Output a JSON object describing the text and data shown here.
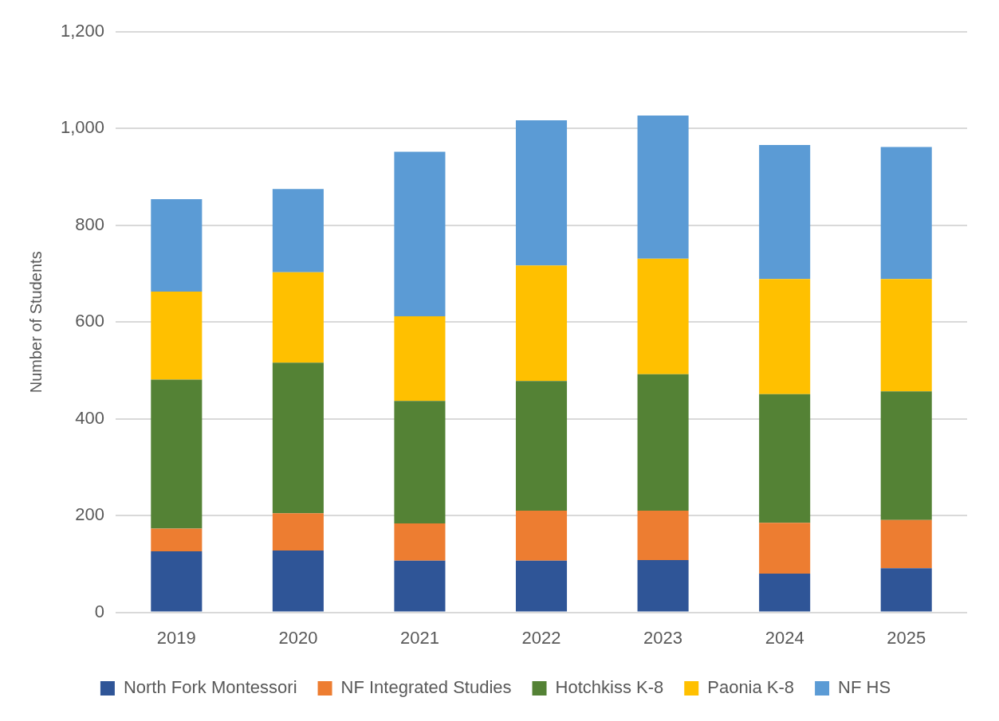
{
  "chart_data": {
    "type": "bar",
    "stacked": true,
    "ylabel": "Number of Students",
    "categories": [
      "2019",
      "2020",
      "2021",
      "2022",
      "2023",
      "2024",
      "2025"
    ],
    "series": [
      {
        "name": "North Fork Montessori",
        "color": "#2f5597",
        "values": [
          126,
          128,
          107,
          107,
          108,
          80,
          91
        ]
      },
      {
        "name": "NF Integrated Studies",
        "color": "#ed7d31",
        "values": [
          47,
          77,
          77,
          103,
          102,
          105,
          100
        ]
      },
      {
        "name": "Hotchkiss K-8",
        "color": "#548235",
        "values": [
          308,
          311,
          253,
          268,
          282,
          266,
          266
        ]
      },
      {
        "name": "Paonia K-8",
        "color": "#ffc000",
        "values": [
          182,
          187,
          175,
          239,
          239,
          238,
          232
        ]
      },
      {
        "name": "NF HS",
        "color": "#5b9bd5",
        "values": [
          191,
          172,
          340,
          300,
          296,
          277,
          273
        ]
      }
    ],
    "ylim": [
      0,
      1200
    ],
    "yticks": [
      0,
      200,
      400,
      600,
      800,
      {
        "value": 1000,
        "label": "1,000"
      },
      {
        "value": 1200,
        "label": "1,200"
      }
    ],
    "grid": "y",
    "legend": "bottom"
  }
}
